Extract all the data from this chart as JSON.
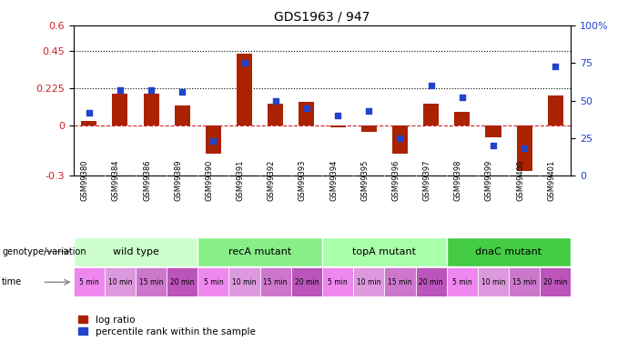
{
  "title": "GDS1963 / 947",
  "samples": [
    "GSM99380",
    "GSM99384",
    "GSM99386",
    "GSM99389",
    "GSM99390",
    "GSM99391",
    "GSM99392",
    "GSM99393",
    "GSM99394",
    "GSM99395",
    "GSM99396",
    "GSM99397",
    "GSM99398",
    "GSM99399",
    "GSM99400",
    "GSM99401"
  ],
  "log_ratio": [
    0.03,
    0.19,
    0.19,
    0.12,
    -0.17,
    0.43,
    0.13,
    0.14,
    -0.01,
    -0.04,
    -0.17,
    0.13,
    0.08,
    -0.07,
    -0.27,
    0.18
  ],
  "pct_rank": [
    42,
    57,
    57,
    56,
    23,
    75,
    50,
    45,
    40,
    43,
    25,
    60,
    52,
    20,
    18,
    73
  ],
  "ylim_left": [
    -0.3,
    0.6
  ],
  "ylim_right": [
    0,
    100
  ],
  "yticks_left": [
    -0.3,
    0.0,
    0.225,
    0.45,
    0.6
  ],
  "yticks_right": [
    0,
    25,
    50,
    75,
    100
  ],
  "hlines": [
    0.225,
    0.45
  ],
  "bar_color": "#AA2200",
  "dot_color": "#2244CC",
  "zero_line_color": "#CC2222",
  "groups": [
    {
      "label": "wild type",
      "start": 0,
      "end": 4,
      "color": "#CCFFCC"
    },
    {
      "label": "recA mutant",
      "start": 4,
      "end": 8,
      "color": "#88EE88"
    },
    {
      "label": "topA mutant",
      "start": 8,
      "end": 12,
      "color": "#AAFFAA"
    },
    {
      "label": "dnaC mutant",
      "start": 12,
      "end": 16,
      "color": "#44CC44"
    }
  ],
  "time_labels": [
    "5 min",
    "10 min",
    "15 min",
    "20 min",
    "5 min",
    "10 min",
    "15 min",
    "20 min",
    "5 min",
    "10 min",
    "15 min",
    "20 min",
    "5 min",
    "10 min",
    "15 min",
    "20 min"
  ],
  "time_colors_cycle": [
    "#EE88EE",
    "#DD99DD",
    "#CC77CC",
    "#BB55BB"
  ],
  "genotype_label": "genotype/variation",
  "time_label": "time",
  "legend_bar": "log ratio",
  "legend_dot": "percentile rank within the sample",
  "background_color": "#FFFFFF",
  "xticklabel_bg": "#CCCCCC"
}
